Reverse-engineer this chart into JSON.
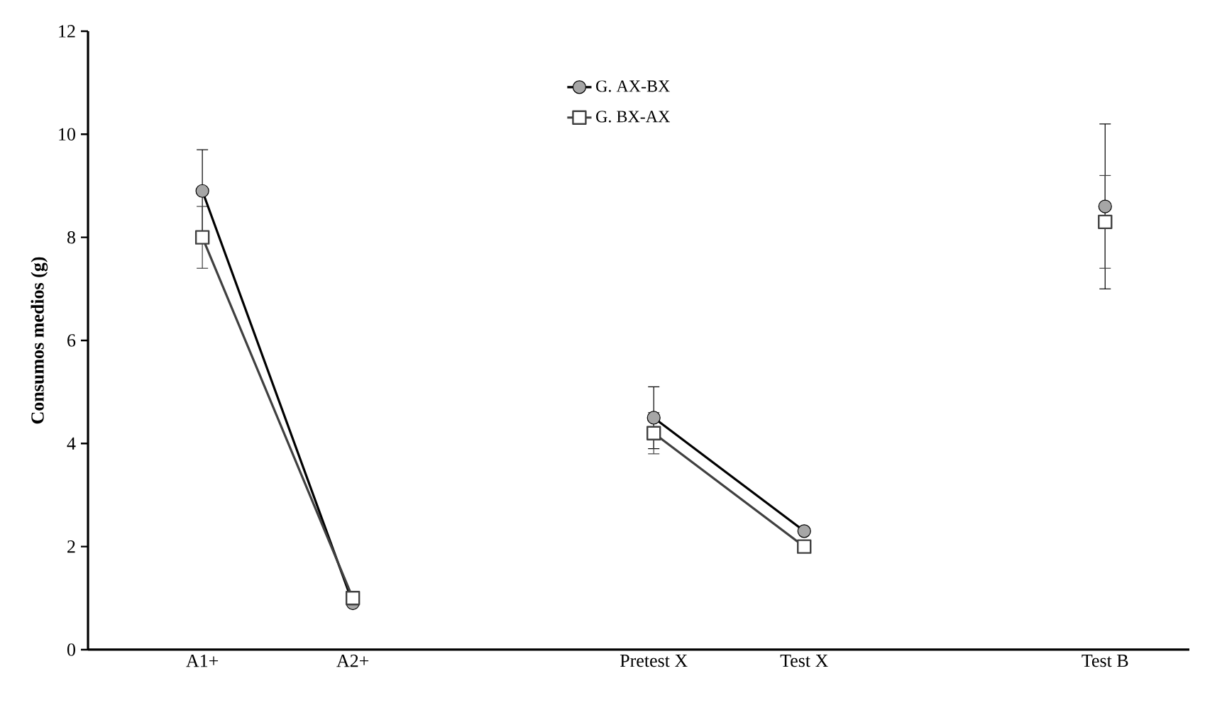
{
  "chart_data": {
    "type": "line",
    "ylabel": "Consumos medios (g)",
    "categories": [
      "A1+",
      "A2+",
      null,
      "Pretest X",
      "Test X",
      null,
      "Test B"
    ],
    "ylim": [
      0,
      12
    ],
    "yticks": [
      0,
      2,
      4,
      6,
      8,
      10,
      12
    ],
    "legend": "top",
    "grid": false,
    "series": [
      {
        "name": "G. AX-BX",
        "color": "#000000",
        "marker": "circle",
        "values": [
          8.9,
          0.9,
          null,
          4.5,
          2.3,
          null,
          8.6
        ],
        "errors": [
          0.8,
          null,
          null,
          0.6,
          null,
          null,
          1.6
        ]
      },
      {
        "name": "G. BX-AX",
        "color": "#404040",
        "marker": "square",
        "values": [
          8.0,
          1.0,
          null,
          4.2,
          2.0,
          null,
          8.3
        ],
        "errors": [
          0.6,
          null,
          null,
          0.4,
          null,
          null,
          0.9
        ]
      }
    ]
  }
}
